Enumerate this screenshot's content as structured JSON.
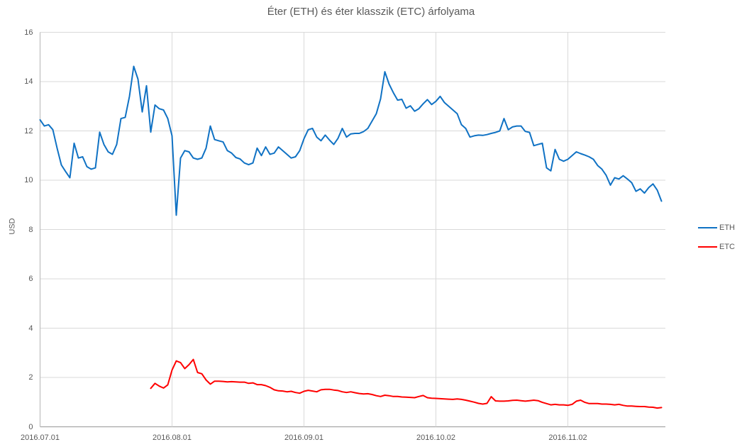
{
  "chart_data": {
    "type": "line",
    "title": "Éter (ETH) és éter klasszik (ETC) árfolyama",
    "ylabel": "USD",
    "ylim": [
      0,
      16
    ],
    "yticks": [
      0,
      2,
      4,
      6,
      8,
      10,
      12,
      14,
      16
    ],
    "grid": true,
    "legend_position": "right",
    "x_total_days": 147,
    "xticks": [
      {
        "label": "2016.07.01",
        "day": 0
      },
      {
        "label": "2016.08.01",
        "day": 31
      },
      {
        "label": "2016.09.01",
        "day": 62
      },
      {
        "label": "2016.10.02",
        "day": 93
      },
      {
        "label": "2016.11.02",
        "day": 124
      }
    ],
    "series": [
      {
        "name": "ETH",
        "color": "#1072C4",
        "start_day": 0,
        "values": [
          12.45,
          12.2,
          12.25,
          12.05,
          11.3,
          10.62,
          10.35,
          10.1,
          11.5,
          10.9,
          10.95,
          10.55,
          10.45,
          10.5,
          11.95,
          11.45,
          11.15,
          11.05,
          11.45,
          12.5,
          12.55,
          13.4,
          14.62,
          14.1,
          12.77,
          13.83,
          11.95,
          13.05,
          12.9,
          12.85,
          12.5,
          11.8,
          8.58,
          10.9,
          11.2,
          11.15,
          10.9,
          10.85,
          10.9,
          11.3,
          12.2,
          11.65,
          11.6,
          11.55,
          11.2,
          11.1,
          10.92,
          10.86,
          10.7,
          10.63,
          10.7,
          11.3,
          11.0,
          11.35,
          11.05,
          11.1,
          11.35,
          11.2,
          11.05,
          10.9,
          10.95,
          11.2,
          11.68,
          12.05,
          12.1,
          11.75,
          11.6,
          11.83,
          11.63,
          11.45,
          11.7,
          12.1,
          11.75,
          11.88,
          11.9,
          11.9,
          11.97,
          12.1,
          12.4,
          12.7,
          13.3,
          14.4,
          13.9,
          13.55,
          13.25,
          13.28,
          12.92,
          13.02,
          12.8,
          12.9,
          13.1,
          13.27,
          13.07,
          13.2,
          13.4,
          13.15,
          13.0,
          12.85,
          12.7,
          12.25,
          12.1,
          11.75,
          11.8,
          11.83,
          11.82,
          11.85,
          11.9,
          11.94,
          12.0,
          12.5,
          12.05,
          12.16,
          12.2,
          12.2,
          11.98,
          11.94,
          11.4,
          11.45,
          11.5,
          10.5,
          10.38,
          11.25,
          10.85,
          10.77,
          10.85,
          11.0,
          11.15,
          11.08,
          11.02,
          10.95,
          10.85,
          10.6,
          10.45,
          10.2,
          9.8,
          10.1,
          10.05,
          10.18,
          10.05,
          9.9,
          9.55,
          9.65,
          9.48,
          9.7,
          9.85,
          9.6,
          9.15
        ]
      },
      {
        "name": "ETC",
        "color": "#FF0000",
        "start_day": 26,
        "values": [
          1.56,
          1.76,
          1.65,
          1.57,
          1.7,
          2.3,
          2.67,
          2.6,
          2.36,
          2.52,
          2.73,
          2.2,
          2.15,
          1.9,
          1.73,
          1.85,
          1.85,
          1.84,
          1.82,
          1.83,
          1.82,
          1.81,
          1.81,
          1.76,
          1.78,
          1.71,
          1.71,
          1.67,
          1.6,
          1.5,
          1.46,
          1.45,
          1.42,
          1.44,
          1.39,
          1.36,
          1.44,
          1.48,
          1.45,
          1.42,
          1.5,
          1.52,
          1.52,
          1.49,
          1.47,
          1.42,
          1.39,
          1.42,
          1.38,
          1.35,
          1.33,
          1.34,
          1.31,
          1.26,
          1.23,
          1.28,
          1.26,
          1.23,
          1.23,
          1.21,
          1.2,
          1.19,
          1.18,
          1.23,
          1.27,
          1.18,
          1.16,
          1.15,
          1.14,
          1.13,
          1.12,
          1.11,
          1.13,
          1.11,
          1.08,
          1.04,
          1.0,
          0.95,
          0.92,
          0.95,
          1.22,
          1.05,
          1.04,
          1.04,
          1.05,
          1.07,
          1.08,
          1.06,
          1.04,
          1.06,
          1.08,
          1.06,
          0.99,
          0.94,
          0.89,
          0.91,
          0.89,
          0.89,
          0.87,
          0.91,
          1.04,
          1.08,
          0.99,
          0.94,
          0.94,
          0.94,
          0.92,
          0.92,
          0.91,
          0.89,
          0.91,
          0.87,
          0.84,
          0.84,
          0.83,
          0.82,
          0.82,
          0.8,
          0.79,
          0.76,
          0.78
        ]
      }
    ]
  }
}
